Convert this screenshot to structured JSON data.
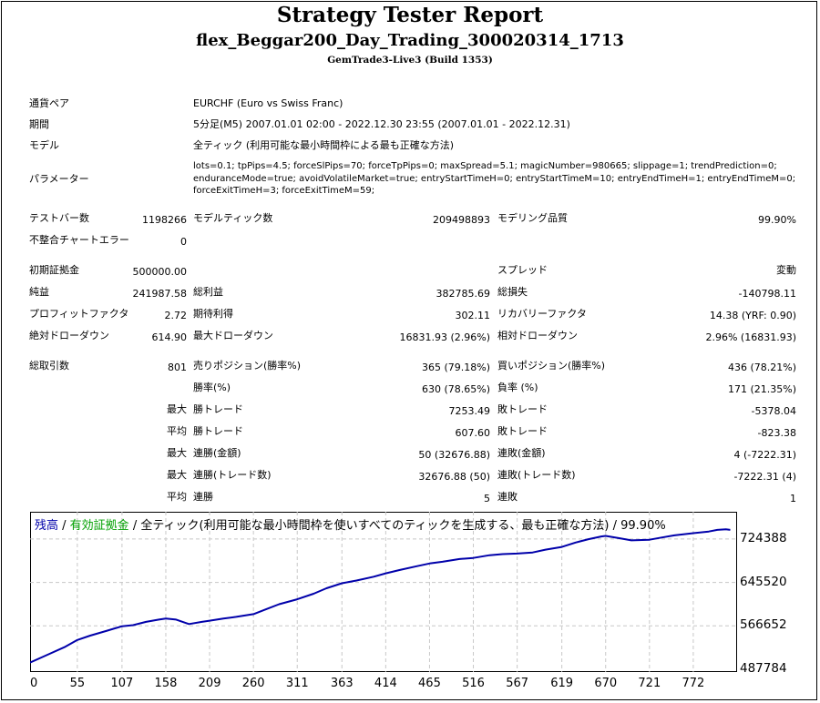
{
  "header": {
    "title": "Strategy Tester Report",
    "subtitle": "flex_Beggar200_Day_Trading_300020314_1713",
    "server": "GemTrade3-Live3 (Build 1353)"
  },
  "info": {
    "symbol_label": "通貨ペア",
    "symbol_value": "EURCHF (Euro vs Swiss Franc)",
    "period_label": "期間",
    "period_value": "5分足(M5) 2007.01.01 02:00 - 2022.12.30 23:55 (2007.01.01 - 2022.12.31)",
    "model_label": "モデル",
    "model_value": "全ティック (利用可能な最小時間枠による最も正確な方法)",
    "params_label": "パラメーター",
    "params_value": "lots=0.1; tpPips=4.5; forceSlPips=70; forceTpPips=0; maxSpread=5.1; magicNumber=980665; slippage=1; trendPrediction=0; enduranceMode=true; avoidVolatileMarket=true; entryStartTimeH=0; entryStartTimeM=10; entryEndTimeH=1; entryEndTimeM=0; forceExitTimeH=3; forceExitTimeM=59;"
  },
  "stats": {
    "bars_label": "テストバー数",
    "bars_value": "1198266",
    "ticks_label": "モデルティック数",
    "ticks_value": "209498893",
    "quality_label": "モデリング品質",
    "quality_value": "99.90%",
    "mismatch_label": "不整合チャートエラー",
    "mismatch_value": "0",
    "deposit_label": "初期証拠金",
    "deposit_value": "500000.00",
    "spread_label": "スプレッド",
    "spread_value": "変動",
    "netprofit_label": "純益",
    "netprofit_value": "241987.58",
    "grossprofit_label": "総利益",
    "grossprofit_value": "382785.69",
    "grossloss_label": "総損失",
    "grossloss_value": "-140798.11",
    "pf_label": "プロフィットファクタ",
    "pf_value": "2.72",
    "expected_label": "期待利得",
    "expected_value": "302.11",
    "recovery_label": "リカバリーファクタ",
    "recovery_value": "14.38 (YRF: 0.90)",
    "absdd_label": "絶対ドローダウン",
    "absdd_value": "614.90",
    "maxdd_label": "最大ドローダウン",
    "maxdd_value": "16831.93 (2.96%)",
    "reldd_label": "相対ドローダウン",
    "reldd_value": "2.96% (16831.93)",
    "trades_label": "総取引数",
    "trades_value": "801",
    "short_label": "売りポジション(勝率%)",
    "short_value": "365 (79.18%)",
    "long_label": "買いポジション(勝率%)",
    "long_value": "436 (78.21%)",
    "winpct_label": "勝率(%)",
    "winpct_value": "630 (78.65%)",
    "losspct_label": "負率 (%)",
    "losspct_value": "171 (21.35%)",
    "max_prefix": "最大",
    "avg_prefix": "平均",
    "largest_win_label": "勝トレード",
    "largest_win_value": "7253.49",
    "largest_loss_label": "敗トレード",
    "largest_loss_value": "-5378.04",
    "avg_win_label": "勝トレード",
    "avg_win_value": "607.60",
    "avg_loss_label": "敗トレード",
    "avg_loss_value": "-823.38",
    "max_consec_wins_label": "連勝(金額)",
    "max_consec_wins_value": "50 (32676.88)",
    "max_consec_losses_label": "連敗(金額)",
    "max_consec_losses_value": "4 (-7222.31)",
    "max_consec_profit_label": "連勝(トレード数)",
    "max_consec_profit_value": "32676.88 (50)",
    "max_consec_loss_label": "連敗(トレード数)",
    "max_consec_loss_value": "-7222.31 (4)",
    "avg_consec_wins_label": "連勝",
    "avg_consec_wins_value": "5",
    "avg_consec_losses_label": "連敗",
    "avg_consec_losses_value": "1"
  },
  "chart_legend": {
    "balance": "残高",
    "sep1": " / ",
    "equity": "有効証拠金",
    "rest": " / 全ティック(利用可能な最小時間枠を使いすべてのティックを生成する、最も正確な方法) / 99.90%"
  },
  "colors": {
    "balance": "#0000aa",
    "equity": "#00a000",
    "grid": "#c8c8c8"
  },
  "chart_data": {
    "type": "line",
    "title": "",
    "xlabel": "",
    "ylabel": "",
    "x_ticks": [
      "0",
      "55",
      "107",
      "158",
      "209",
      "260",
      "311",
      "363",
      "414",
      "465",
      "516",
      "567",
      "619",
      "670",
      "721",
      "772"
    ],
    "y_ticks": [
      "724388",
      "645520",
      "566652",
      "487784"
    ],
    "xlim": [
      0,
      823
    ],
    "ylim": [
      487784,
      754000
    ],
    "grid": true,
    "series": [
      {
        "name": "残高",
        "x": [
          0,
          20,
          40,
          55,
          70,
          90,
          107,
          120,
          135,
          150,
          158,
          170,
          185,
          200,
          209,
          225,
          240,
          260,
          275,
          290,
          311,
          330,
          345,
          363,
          380,
          400,
          414,
          430,
          450,
          465,
          480,
          500,
          516,
          535,
          550,
          567,
          585,
          600,
          619,
          635,
          650,
          665,
          670,
          685,
          700,
          721,
          735,
          750,
          772,
          790,
          800,
          810,
          815
        ],
        "y": [
          500000,
          514000,
          528000,
          541000,
          549000,
          558000,
          566000,
          568000,
          574000,
          578000,
          580000,
          578000,
          570000,
          574000,
          576000,
          580000,
          583000,
          588000,
          597000,
          606000,
          615000,
          625000,
          635000,
          644000,
          649000,
          656000,
          662000,
          668000,
          675000,
          680000,
          683000,
          688000,
          690000,
          695000,
          697000,
          698000,
          700000,
          705000,
          710000,
          718000,
          724000,
          729000,
          730000,
          726000,
          722000,
          723000,
          727000,
          731000,
          735000,
          738000,
          741000,
          742000,
          741000
        ]
      }
    ]
  }
}
